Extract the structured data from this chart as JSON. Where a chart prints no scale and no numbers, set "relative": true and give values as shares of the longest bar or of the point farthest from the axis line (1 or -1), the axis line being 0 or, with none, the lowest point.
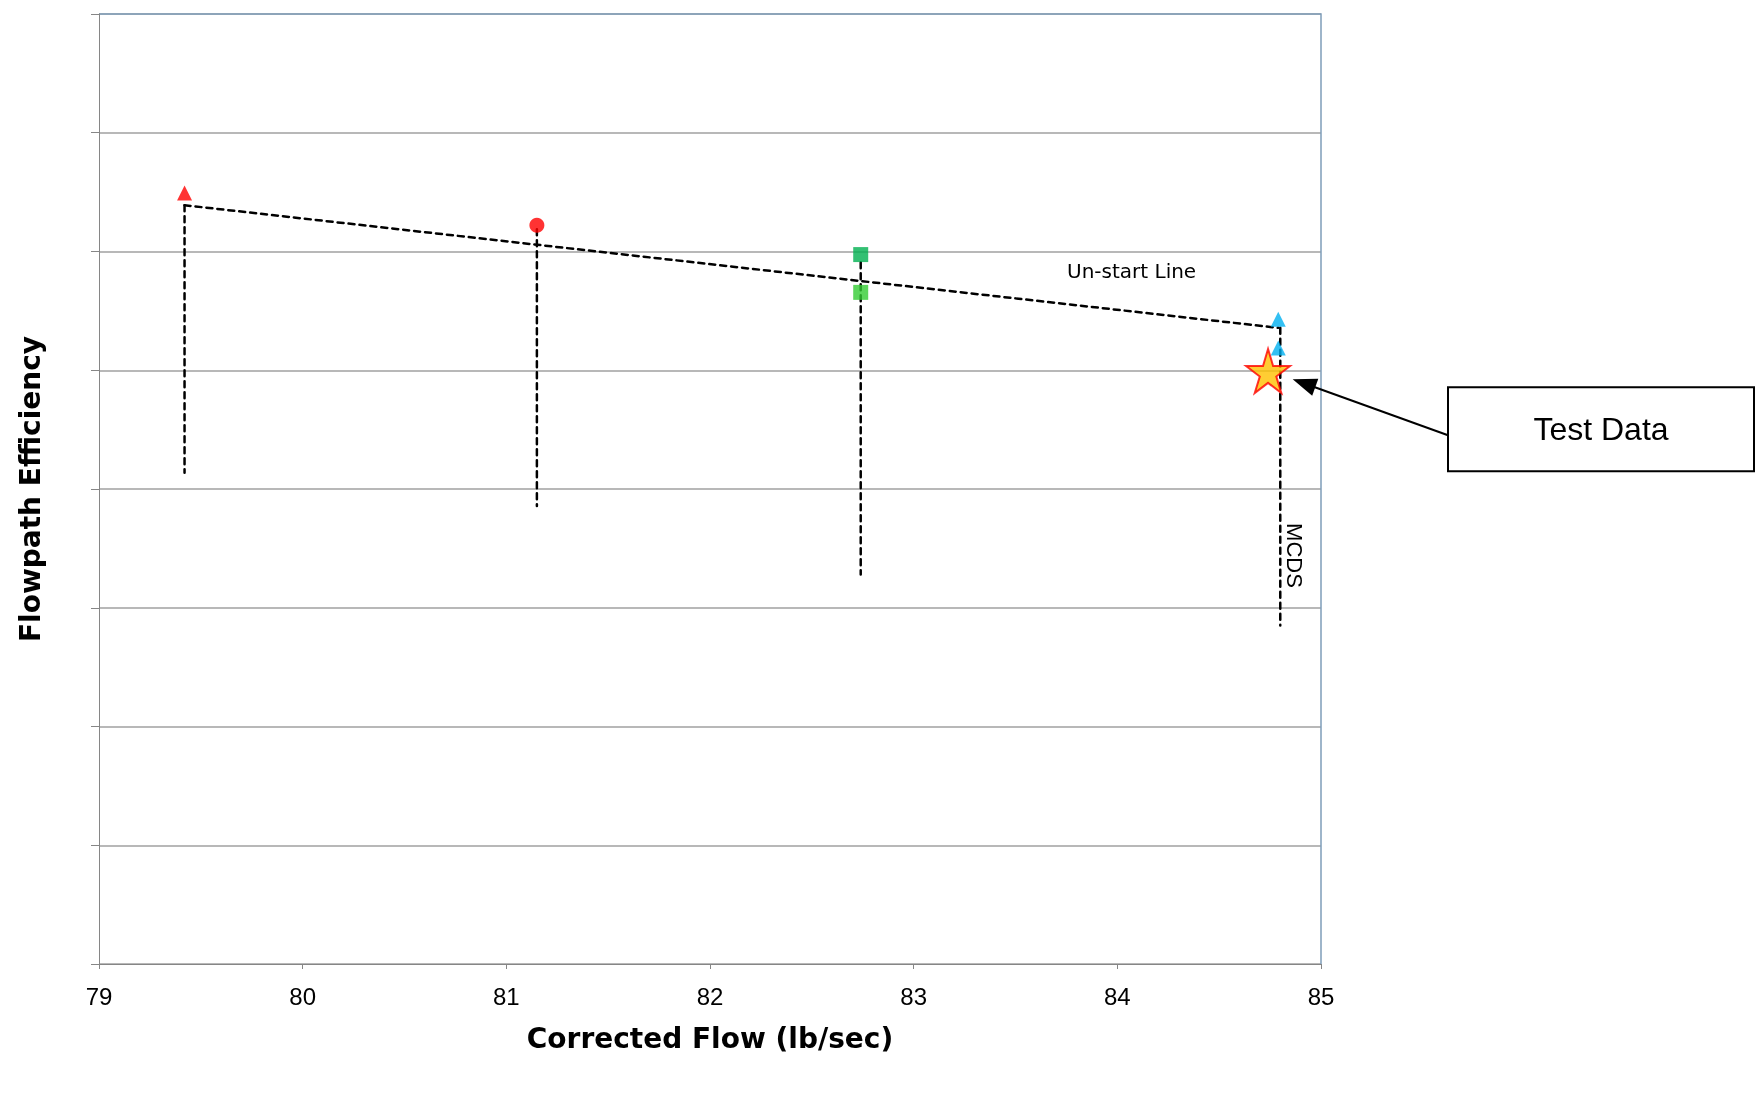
{
  "chart_data": {
    "type": "scatter",
    "xlabel": "Corrected Flow (lb/sec)",
    "ylabel": "Flowpath Efficiency",
    "relative": true,
    "xlim": [
      79,
      85
    ],
    "xticks": [
      79,
      80,
      81,
      82,
      83,
      84,
      85
    ],
    "tick_labels": "x",
    "grid": "y",
    "series": [
      {
        "marker": "triangle",
        "color": "#ff0000",
        "x": [
          79.42
        ],
        "values": [
          1
        ]
      },
      {
        "marker": "circle",
        "color": "#ff0000",
        "x": [
          81.15
        ],
        "values": [
          0.958
        ]
      },
      {
        "marker": "square",
        "colors": [
          "#00b050",
          "#33cc33"
        ],
        "x": [
          82.74,
          82.74
        ],
        "values": [
          0.92,
          0.871
        ]
      },
      {
        "marker": "triangle",
        "color": "#00b0f0",
        "x": [
          84.79,
          84.79
        ],
        "values": [
          0.836,
          0.799
        ]
      },
      {
        "marker": "star",
        "color": "#ffc000",
        "x": [
          84.74
        ],
        "values": [
          0.769
        ]
      },
      {
        "type": "line",
        "marker": "none",
        "line_style": "dashed",
        "color": "#000000",
        "x": [
          79.42,
          84.79
        ],
        "values": [
          0.984,
          0.825
        ]
      },
      {
        "type": "line",
        "marker": "none",
        "line_style": "dashed",
        "color": "#000000",
        "x": [
          79.42,
          79.42
        ],
        "values": [
          0.984,
          0.637
        ]
      },
      {
        "type": "line",
        "marker": "none",
        "line_style": "dashed",
        "color": "#000000",
        "x": [
          81.15,
          81.15
        ],
        "values": [
          0.953,
          0.594
        ]
      },
      {
        "type": "line",
        "marker": "none",
        "line_style": "dashed",
        "color": "#000000",
        "x": [
          82.74,
          82.74
        ],
        "values": [
          0.91,
          0.505
        ]
      },
      {
        "type": "line",
        "marker": "none",
        "line_style": "dashed",
        "color": "#000000",
        "x": [
          84.8,
          84.8
        ],
        "values": [
          0.825,
          0.439
        ]
      }
    ],
    "annotations": [
      "Un-start Line",
      "MCDS",
      "Test Data"
    ]
  }
}
